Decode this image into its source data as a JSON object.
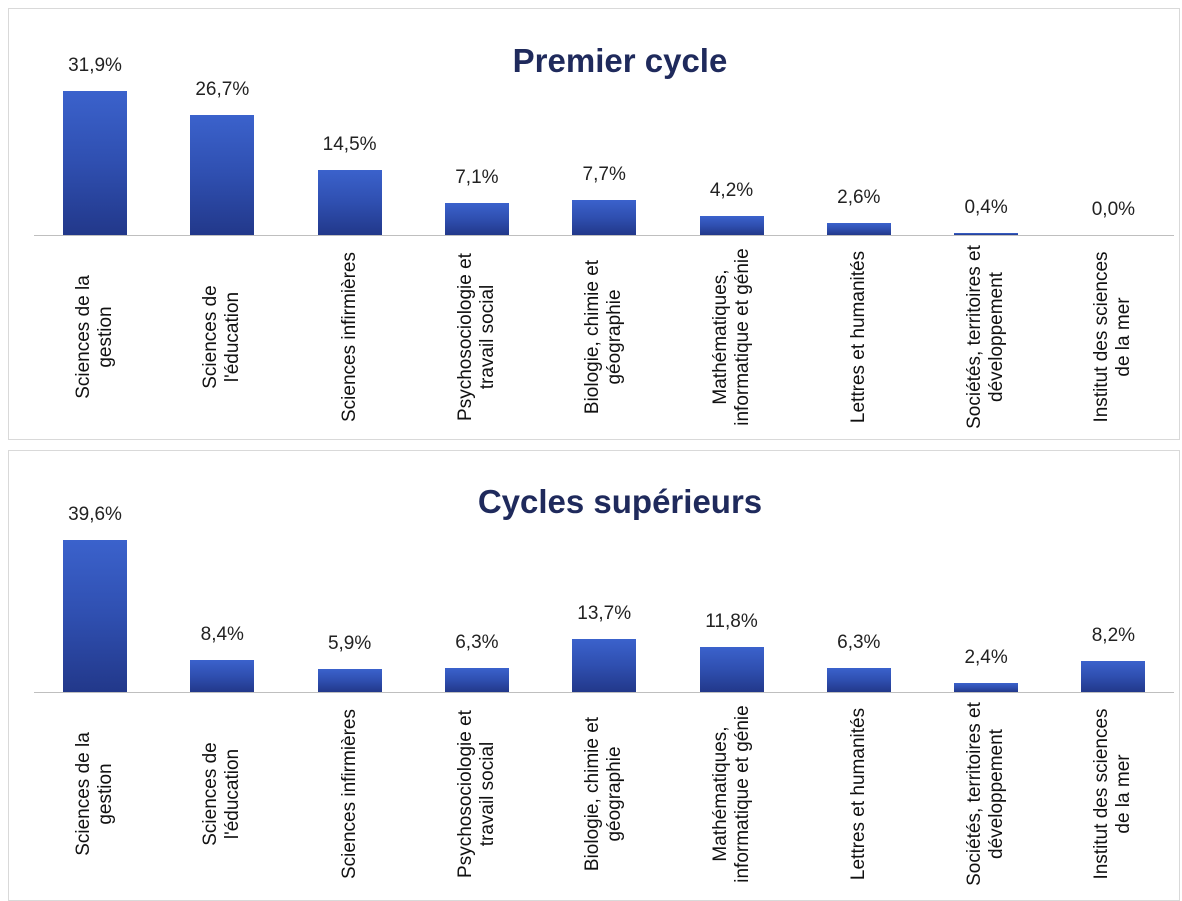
{
  "chart_data": [
    {
      "type": "bar",
      "title": "Premier cycle",
      "color": "#2f4fb0",
      "categories": [
        "Sciences de la gestion",
        "Sciences de l'éducation",
        "Sciences infirmières",
        "Psychosociologie et travail social",
        "Biologie, chimie et géographie",
        "Mathématiques, informatique et génie",
        "Lettres et humanités",
        "Sociétés, territoires et développement",
        "Institut des sciences de la mer"
      ],
      "values": [
        31.9,
        26.7,
        14.5,
        7.1,
        7.7,
        4.2,
        2.6,
        0.4,
        0.0
      ],
      "value_labels": [
        "31,9%",
        "26,7%",
        "14,5%",
        "7,1%",
        "7,7%",
        "4,2%",
        "2,6%",
        "0,4%",
        "0,0%"
      ]
    },
    {
      "type": "bar",
      "title": "Cycles supérieurs",
      "color": "#2f4fb0",
      "categories": [
        "Sciences de la gestion",
        "Sciences de l'éducation",
        "Sciences infirmières",
        "Psychosociologie et travail social",
        "Biologie, chimie et géographie",
        "Mathématiques, informatique et génie",
        "Lettres et humanités",
        "Sociétés, territoires et développement",
        "Institut des sciences de la mer"
      ],
      "values": [
        39.6,
        8.4,
        5.9,
        6.3,
        13.7,
        11.8,
        6.3,
        2.4,
        8.2
      ],
      "value_labels": [
        "39,6%",
        "8,4%",
        "5,9%",
        "6,3%",
        "13,7%",
        "11,8%",
        "6,3%",
        "2,4%",
        "8,2%"
      ]
    }
  ]
}
